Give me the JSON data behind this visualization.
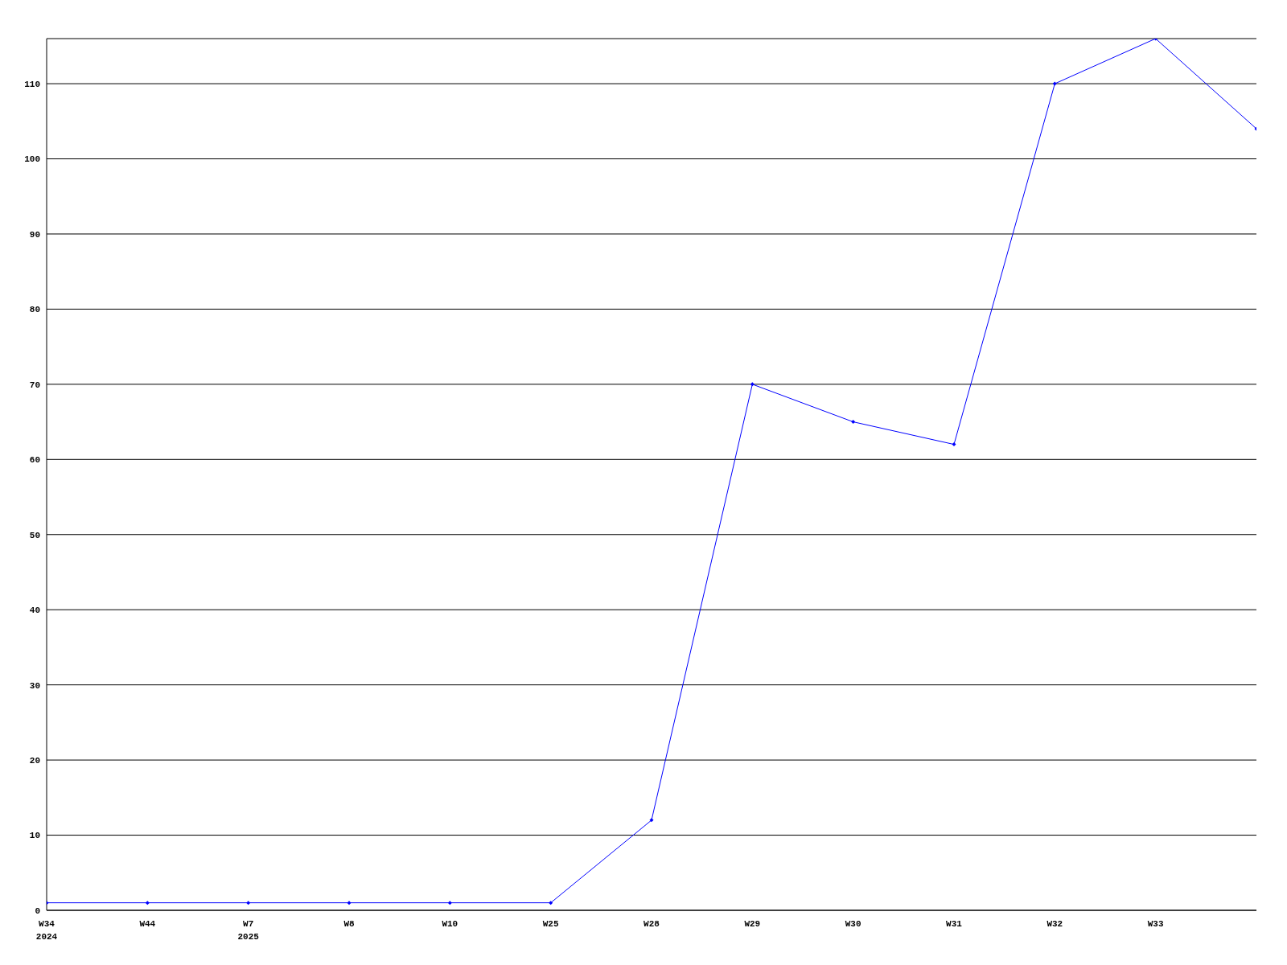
{
  "chart_data": {
    "type": "line",
    "categories": [
      "W34\n2024",
      "W44",
      "W7\n2025",
      "W8",
      "W10",
      "W25",
      "W28",
      "W29",
      "W30",
      "W31",
      "W32",
      "W33",
      null
    ],
    "series": [
      {
        "color": "#0000ff",
        "values": [
          1,
          1,
          1,
          1,
          1,
          1,
          12,
          70,
          65,
          62,
          110,
          116,
          104
        ]
      }
    ],
    "ylim": [
      0,
      116
    ],
    "yticks": [
      0,
      10,
      20,
      30,
      40,
      50,
      60,
      70,
      80,
      90,
      100,
      110
    ],
    "grid": "y",
    "marker": "diamond",
    "line_style": "solid",
    "legend": false
  }
}
